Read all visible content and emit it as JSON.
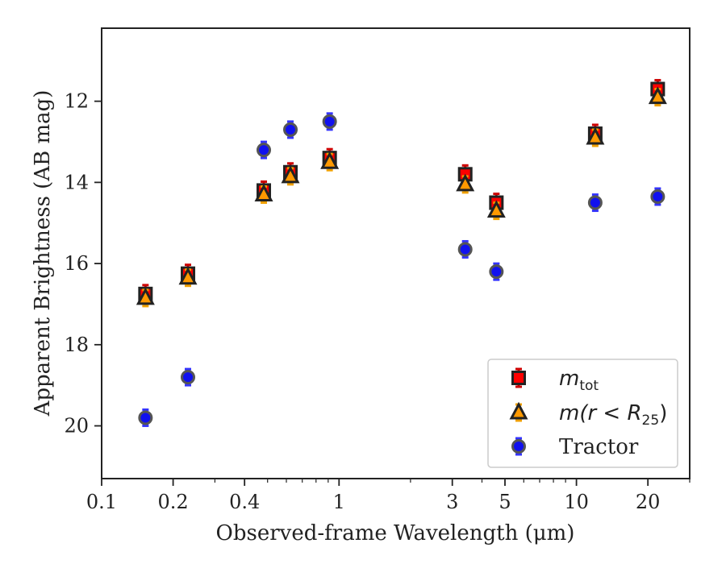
{
  "chart_data": {
    "type": "scatter",
    "xlabel": "Observed-frame Wavelength (μm)",
    "ylabel": "Apparent Brightness (AB mag)",
    "xscale": "log",
    "xlim": [
      0.1,
      30
    ],
    "ylim": [
      21.3,
      10.2
    ],
    "y_inverted": true,
    "x_ticks": [
      0.1,
      0.2,
      0.4,
      1,
      3,
      5,
      10,
      20
    ],
    "x_tick_labels": [
      "0.1",
      "0.2",
      "0.4",
      "1",
      "3",
      "5",
      "10",
      "20"
    ],
    "y_ticks": [
      12,
      14,
      16,
      18,
      20
    ],
    "y_tick_labels": [
      "12",
      "14",
      "16",
      "18",
      "20"
    ],
    "grid": false,
    "legend_position": "lower-right",
    "series": [
      {
        "name": "m_tot",
        "legend_label": {
          "base": "m",
          "sub": "tot"
        },
        "marker": "square",
        "face_color": "#ff0000",
        "edge_color": "#222222",
        "errorbar_color": "#cc0000",
        "x": [
          0.153,
          0.231,
          0.482,
          0.624,
          0.913,
          3.4,
          4.6,
          12.0,
          22.0
        ],
        "y": [
          16.75,
          16.25,
          14.2,
          13.75,
          13.4,
          13.8,
          14.5,
          12.8,
          11.7
        ]
      },
      {
        "name": "m(r < R25)",
        "legend_label": {
          "base": "m(r < R",
          "sub": "25",
          "tail": ")"
        },
        "marker": "triangle",
        "face_color": "#ff9900",
        "edge_color": "#222222",
        "errorbar_color": "#f0a000",
        "x": [
          0.153,
          0.231,
          0.482,
          0.624,
          0.913,
          3.4,
          4.6,
          12.0,
          22.0
        ],
        "y": [
          16.85,
          16.35,
          14.3,
          13.85,
          13.5,
          14.05,
          14.7,
          12.9,
          11.9
        ]
      },
      {
        "name": "Tractor",
        "legend_label": {
          "base": "Tractor"
        },
        "marker": "circle",
        "face_color": "#1111ee",
        "edge_color": "#555555",
        "errorbar_color": "#3333ff",
        "x": [
          0.153,
          0.231,
          0.482,
          0.624,
          0.913,
          3.4,
          4.6,
          12.0,
          22.0
        ],
        "y": [
          19.8,
          18.8,
          13.2,
          12.7,
          12.5,
          15.65,
          16.2,
          14.5,
          14.35
        ]
      }
    ]
  }
}
